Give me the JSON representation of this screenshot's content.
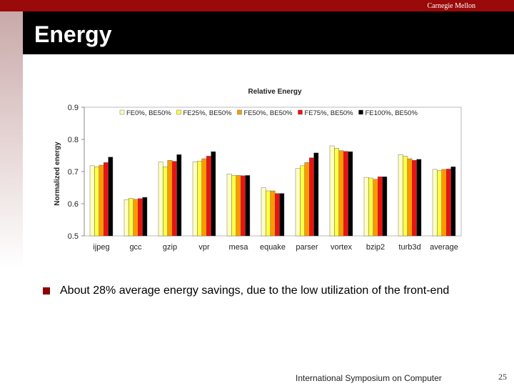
{
  "header": {
    "brand": "Carnegie Mellon",
    "title": "Energy"
  },
  "bullet": {
    "text": "About 28% average energy savings, due to the low utilization of the front-end"
  },
  "footer": {
    "text": "International Symposium on Computer",
    "page": "25"
  },
  "colors": {
    "accent": "#9b0a0a",
    "series": [
      "#ffffc0",
      "#ffff44",
      "#ff9900",
      "#ee1111",
      "#000000"
    ]
  },
  "chart_data": {
    "type": "bar",
    "title": "Relative Energy",
    "xlabel": "",
    "ylabel": "Normalized energy",
    "ylim": [
      0.5,
      0.9
    ],
    "yticks": [
      "0.5",
      "0.6",
      "0.7",
      "0.8",
      "0.9"
    ],
    "categories": [
      "ijpeg",
      "gcc",
      "gzip",
      "vpr",
      "mesa",
      "equake",
      "parser",
      "vortex",
      "bzip2",
      "turb3d",
      "average"
    ],
    "series": [
      {
        "name": "FE0%, BE50%",
        "values": [
          0.718,
          0.613,
          0.73,
          0.73,
          0.693,
          0.65,
          0.71,
          0.78,
          0.682,
          0.753,
          0.707
        ]
      },
      {
        "name": "FE25%, BE50%",
        "values": [
          0.715,
          0.617,
          0.715,
          0.733,
          0.688,
          0.64,
          0.718,
          0.773,
          0.68,
          0.748,
          0.703
        ]
      },
      {
        "name": "FE50%, BE50%",
        "values": [
          0.72,
          0.614,
          0.735,
          0.74,
          0.688,
          0.64,
          0.728,
          0.765,
          0.676,
          0.74,
          0.707
        ]
      },
      {
        "name": "FE75%, BE50%",
        "values": [
          0.728,
          0.616,
          0.732,
          0.748,
          0.687,
          0.632,
          0.743,
          0.763,
          0.684,
          0.735,
          0.708
        ]
      },
      {
        "name": "FE100%, BE50%",
        "values": [
          0.745,
          0.62,
          0.753,
          0.762,
          0.688,
          0.632,
          0.758,
          0.762,
          0.684,
          0.738,
          0.715
        ]
      }
    ],
    "grid": false,
    "legend": "top"
  }
}
